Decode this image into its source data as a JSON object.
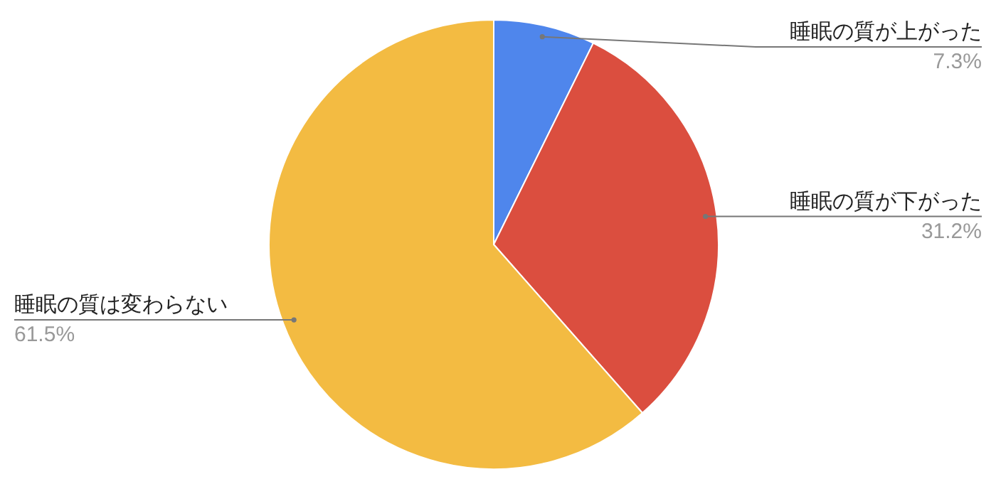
{
  "chart_data": {
    "type": "pie",
    "categories": [
      "睡眠の質が上がった",
      "睡眠の質が下がった",
      "睡眠の質は変わらない"
    ],
    "values": [
      7.3,
      31.2,
      61.5
    ],
    "colors": [
      "#4f86ec",
      "#db4e3f",
      "#f3bb42"
    ],
    "value_labels": [
      "7.3%",
      "31.2%",
      "61.5%"
    ]
  }
}
